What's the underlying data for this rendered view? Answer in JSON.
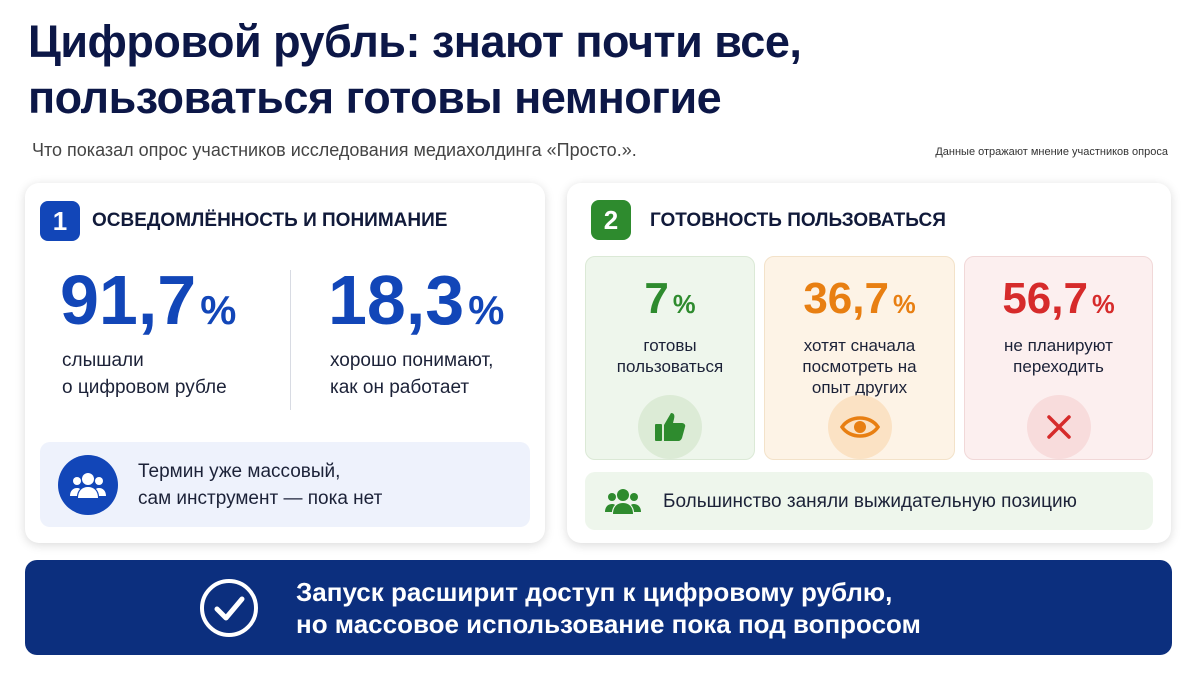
{
  "header": {
    "title": "Цифровой рубль: знают почти все,\nпользоваться готовы немногие",
    "subtitle": "Что показал опрос участников исследования медиахолдинга «Просто.».",
    "note": "Данные отражают мнение участников опроса"
  },
  "sections": [
    {
      "number": "1",
      "heading": "ОСВЕДОМЛЁННОСТЬ И ПОНИМАНИЕ",
      "stats": [
        {
          "value": "91,7",
          "unit": "%",
          "label": "слышали\nо цифровом рубле"
        },
        {
          "value": "18,3",
          "unit": "%",
          "label": "хорошо понимают,\nкак он работает"
        }
      ],
      "callout": "Термин уже массовый,\nсам инструмент — пока нет"
    },
    {
      "number": "2",
      "heading": "ГОТОВНОСТЬ ПОЛЬЗОВАТЬСЯ",
      "stats": [
        {
          "value": "7",
          "unit": "%",
          "label": "готовы\nпользоваться"
        },
        {
          "value": "36,7",
          "unit": "%",
          "label": "хотят сначала\nпосмотреть на\nопыт других"
        },
        {
          "value": "56,7",
          "unit": "%",
          "label": "не планируют\nпереходить"
        }
      ],
      "callout": "Большинство заняли выжидательную позицию"
    }
  ],
  "conclusion": "Запуск расширит доступ к цифровому рублю,\nно массовое использование пока под вопросом"
}
